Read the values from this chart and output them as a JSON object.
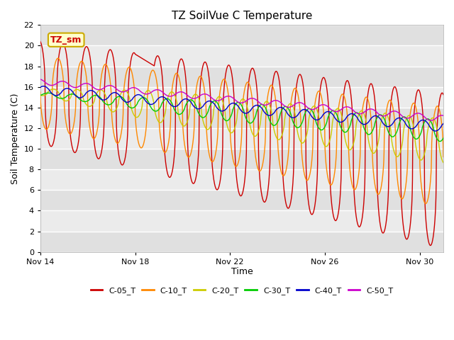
{
  "title": "TZ SoilVue C Temperature",
  "xlabel": "Time",
  "ylabel": "Soil Temperature (C)",
  "ylim": [
    0,
    22
  ],
  "xtick_labels": [
    "Nov 14",
    "Nov 18",
    "Nov 22",
    "Nov 26",
    "Nov 30"
  ],
  "xtick_positions": [
    0,
    4,
    8,
    12,
    16
  ],
  "fig_bg": "#ffffff",
  "plot_bg": "#e8e8e8",
  "grid_color": "#ffffff",
  "legend_label": "TZ_sm",
  "legend_box_facecolor": "#ffffcc",
  "legend_box_edgecolor": "#ccaa00",
  "series": [
    {
      "label": "C-05_T",
      "color": "#cc0000",
      "linewidth": 1.0
    },
    {
      "label": "C-10_T",
      "color": "#ff8800",
      "linewidth": 1.0
    },
    {
      "label": "C-20_T",
      "color": "#cccc00",
      "linewidth": 1.0
    },
    {
      "label": "C-30_T",
      "color": "#00cc00",
      "linewidth": 1.0
    },
    {
      "label": "C-40_T",
      "color": "#0000cc",
      "linewidth": 1.0
    },
    {
      "label": "C-50_T",
      "color": "#cc00cc",
      "linewidth": 1.0
    }
  ]
}
